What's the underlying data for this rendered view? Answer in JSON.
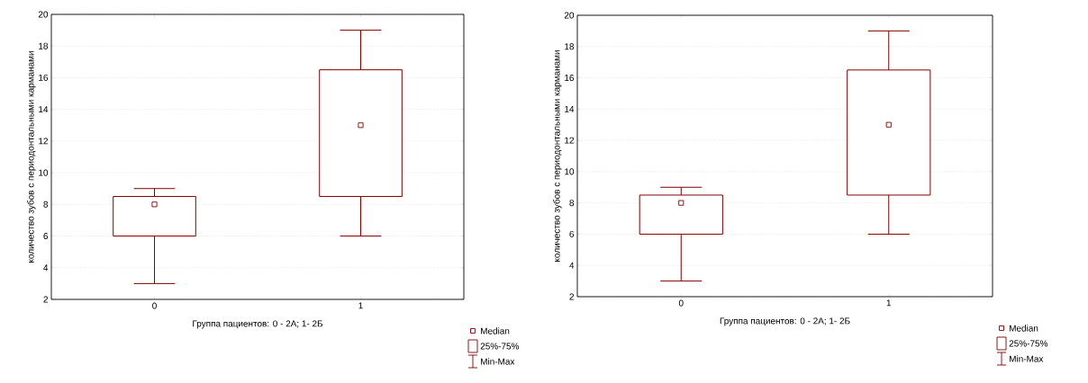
{
  "chart_data": [
    {
      "type": "box",
      "xlabel": "Группа пациентов: 0 - 2А; 1- 2Б",
      "ylabel": "количество зубов с периодонтальными карманами",
      "categories": [
        "0",
        "1"
      ],
      "boxes": [
        {
          "low": 3,
          "q1": 6,
          "median": 8,
          "q3": 8.5,
          "high": 9
        },
        {
          "low": 6,
          "q1": 8.5,
          "median": 13,
          "q3": 16.5,
          "high": 19
        }
      ],
      "color": "#800000",
      "ylim": [
        2,
        20
      ],
      "yticks": [
        2,
        4,
        6,
        8,
        10,
        12,
        14,
        16,
        18,
        20
      ],
      "grid": "y",
      "marker": "square",
      "annotations": [
        "Median",
        "25%-75%",
        "Min-Max"
      ]
    },
    {
      "type": "box",
      "xlabel": "Группа пациентов: 0 - 2А; 1- 2Б",
      "ylabel": "количество зубов с периодонтальными карманами",
      "categories": [
        "0",
        "1"
      ],
      "boxes": [
        {
          "low": 3,
          "q1": 6,
          "median": 8,
          "q3": 8.5,
          "high": 9
        },
        {
          "low": 6,
          "q1": 8.5,
          "median": 13,
          "q3": 16.5,
          "high": 19
        }
      ],
      "color": "#800000",
      "ylim": [
        2,
        20
      ],
      "yticks": [
        2,
        4,
        6,
        8,
        10,
        12,
        14,
        16,
        18,
        20
      ],
      "grid": "y",
      "marker": "square",
      "annotations": [
        "Median",
        "25%-75%",
        "Min-Max"
      ]
    }
  ]
}
